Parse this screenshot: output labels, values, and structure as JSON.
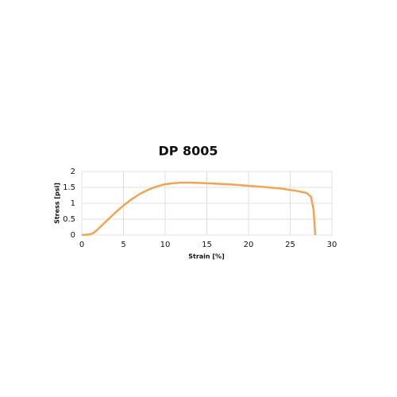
{
  "chart_data": {
    "type": "line",
    "title": "DP 8005",
    "x_label": "Strain [%]",
    "y_label": "Stress [psi]",
    "xlim": [
      0,
      30
    ],
    "xticks": [
      0,
      5,
      10,
      15,
      20,
      25,
      30
    ],
    "ylim": [
      0,
      2
    ],
    "yticks": [
      0,
      0.5,
      1,
      1.5,
      2
    ],
    "grid": true,
    "x": [
      0,
      1,
      1.5,
      2,
      3,
      4,
      5,
      6,
      7,
      8,
      9,
      10,
      11,
      12,
      13,
      15,
      18,
      20,
      22,
      24,
      26,
      27,
      27.5,
      27.8,
      28
    ],
    "series": [
      {
        "name": "DP 8005",
        "color": "#f0a552",
        "values": [
          0,
          0.02,
          0.08,
          0.2,
          0.45,
          0.7,
          0.93,
          1.13,
          1.3,
          1.43,
          1.53,
          1.6,
          1.63,
          1.65,
          1.65,
          1.63,
          1.59,
          1.55,
          1.51,
          1.46,
          1.38,
          1.32,
          1.2,
          0.8,
          0
        ]
      }
    ]
  }
}
